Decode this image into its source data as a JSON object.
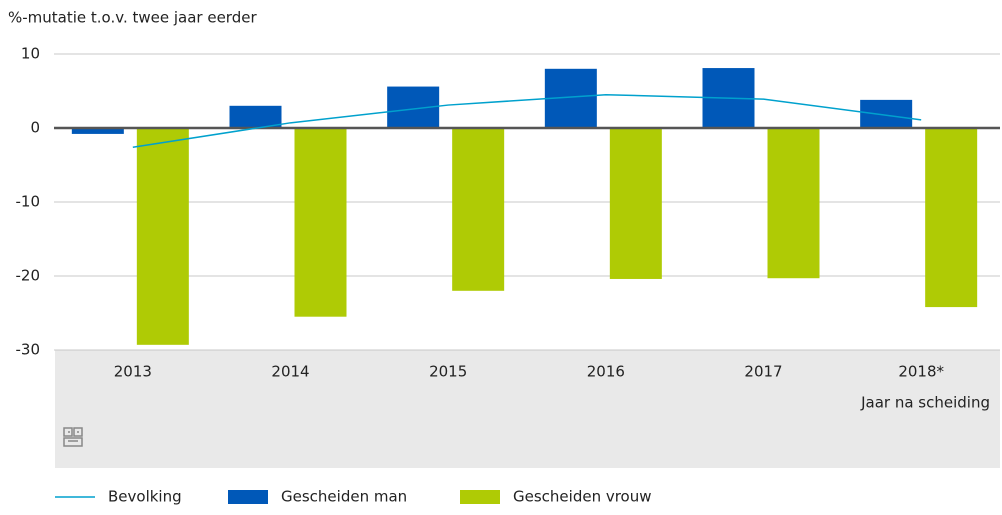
{
  "chart_data": {
    "type": "bar",
    "title": "%-mutatie t.o.v. twee jaar eerder",
    "x_label": "Jaar na scheiding",
    "categories": [
      "2013",
      "2014",
      "2015",
      "2016",
      "2017",
      "2018*"
    ],
    "series": [
      {
        "name": "Bevolking",
        "type": "line",
        "color": "#00a1cd",
        "values": [
          -2.6,
          0.7,
          3.1,
          4.5,
          3.9,
          1.1
        ]
      },
      {
        "name": "Gescheiden man",
        "type": "bar",
        "color": "#0058b8",
        "values": [
          -0.8,
          3.0,
          5.6,
          8.0,
          8.1,
          3.8
        ]
      },
      {
        "name": "Gescheiden vrouw",
        "type": "bar",
        "color": "#afcb05",
        "values": [
          -29.3,
          -25.5,
          -22.0,
          -20.4,
          -20.3,
          -24.2
        ]
      }
    ],
    "ylim": [
      -30,
      10
    ],
    "yticks": [
      -30,
      -20,
      -10,
      0,
      10
    ],
    "grid": true
  }
}
